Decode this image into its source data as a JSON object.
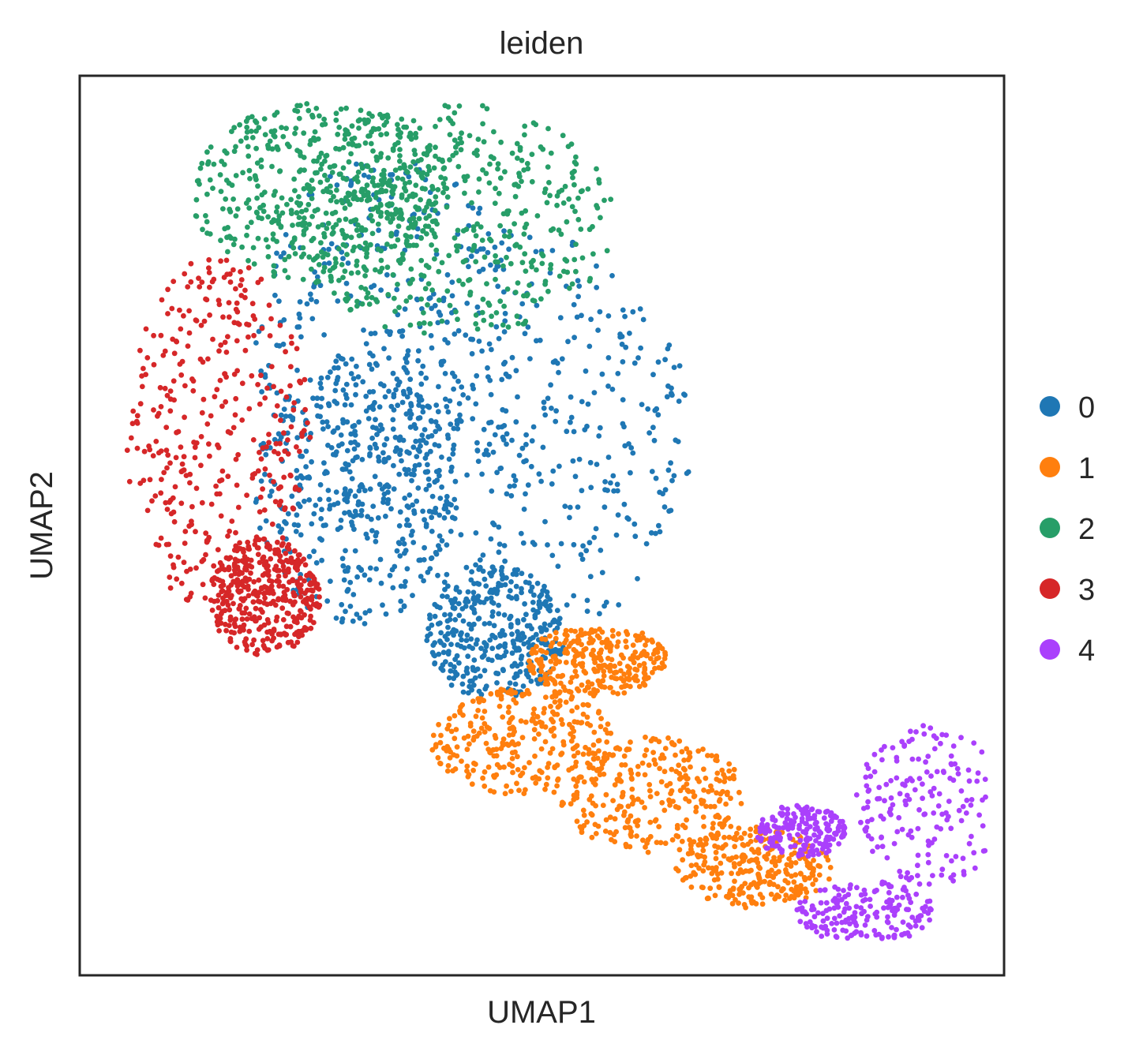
{
  "chart_data": {
    "type": "scatter",
    "title": "leiden",
    "xlabel": "UMAP1",
    "ylabel": "UMAP2",
    "xlim": [
      0,
      10
    ],
    "ylim": [
      0,
      10
    ],
    "grid": false,
    "ticks": "none",
    "legend": "right",
    "series": [
      {
        "name": "0",
        "color": "#1f77b4",
        "regions": [
          [
            3.4,
            7.0,
            3.0,
            4.3
          ],
          [
            4.9,
            6.0,
            3.5,
            4.5
          ],
          [
            3.0,
            5.4,
            2.2,
            3.0
          ],
          [
            4.5,
            3.8,
            1.5,
            1.5
          ]
        ],
        "density": 1450
      },
      {
        "name": "1",
        "color": "#ff7f0e",
        "regions": [
          [
            4.8,
            2.6,
            2.0,
            1.2
          ],
          [
            6.2,
            2.0,
            2.0,
            1.3
          ],
          [
            7.3,
            1.2,
            1.7,
            0.9
          ],
          [
            5.6,
            3.5,
            1.5,
            0.8
          ]
        ],
        "density": 1150
      },
      {
        "name": "2",
        "color": "#279e68",
        "regions": [
          [
            2.6,
            8.7,
            2.8,
            2.0
          ],
          [
            4.0,
            8.4,
            3.6,
            2.6
          ]
        ],
        "density": 950
      },
      {
        "name": "3",
        "color": "#d62728",
        "regions": [
          [
            1.5,
            6.0,
            2.0,
            4.0
          ],
          [
            2.0,
            4.2,
            1.2,
            1.3
          ]
        ],
        "density": 750
      },
      {
        "name": "4",
        "color": "#aa40fc",
        "regions": [
          [
            9.2,
            1.9,
            1.6,
            1.8
          ],
          [
            8.5,
            0.7,
            1.5,
            0.7
          ],
          [
            7.8,
            1.6,
            1.0,
            0.6
          ]
        ],
        "density": 560
      }
    ]
  }
}
